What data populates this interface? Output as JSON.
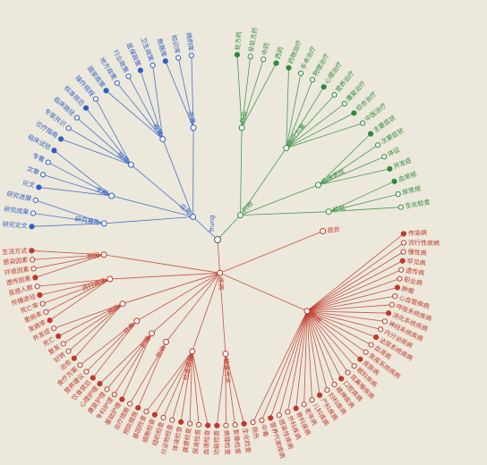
{
  "root": {
    "label": "Trung"
  },
  "colors": {
    "blue": "#2f5fc4",
    "green": "#2e8b3e",
    "red": "#c0392b",
    "background": "#ece8dc"
  },
  "groups": [
    {
      "label": "应用",
      "color": "blue",
      "children": [
        {
          "label": "研究报告",
          "children": [
            "研究论文",
            "研究成果",
            "研究进展"
          ]
        },
        {
          "label": "文献",
          "children": [
            "论文",
            "文章",
            "专著",
            "临床试验"
          ]
        },
        {
          "label": "指南",
          "children": [
            "诊疗指南",
            "专家共识",
            "临床路径",
            "标准规范",
            "操作规程"
          ]
        },
        {
          "label": "政策",
          "children": [
            "国家政策",
            "地方政策",
            "行业政策",
            "医保政策",
            "卫生政策"
          ]
        },
        {
          "label": "资源",
          "children": [
            "数据库",
            "知识库",
            "病例库"
          ]
        }
      ]
    },
    {
      "label": "药物",
      "color": "green",
      "children": [
        {
          "label": "药品",
          "children": [
            "处方药",
            "非处方药",
            "中药",
            "西药"
          ]
        },
        {
          "label": "治疗方案",
          "children": [
            "药物治疗",
            "手术治疗",
            "物理治疗",
            "心理治疗",
            "营养治疗",
            "康复治疗",
            "综合治疗",
            "中医治疗"
          ]
        },
        {
          "label": "临床表现",
          "children": [
            "主要症状",
            "次要症状",
            "体征",
            "并发症"
          ]
        },
        {
          "label": "检验",
          "children": [
            "血常规",
            "尿常规",
            "生化检查"
          ]
        }
      ]
    },
    {
      "label": "疾病",
      "color": "red",
      "children": [
        {
          "label": "症状",
          "children": []
        },
        {
          "label": "疾病",
          "children": [
            "传染病",
            "流行性疾病",
            "慢性病",
            "罕见病",
            "遗传病",
            "职业病",
            "肿瘤",
            "心血管疾病",
            "呼吸系统疾病",
            "消化系统疾病",
            "神经系统疾病",
            "内分泌疾病",
            "泌尿系统疾病",
            "血液病",
            "免疫系统疾病",
            "皮肤病",
            "眼科疾病",
            "耳鼻喉疾病",
            "口腔疾病",
            "精神疾病",
            "妇科疾病",
            "产科疾病",
            "儿科疾病",
            "老年病",
            "骨科疾病",
            "外科疾病",
            "感染性疾病",
            "营养代谢疾病",
            "中毒",
            "损伤"
          ]
        },
        {
          "label": "检查方法",
          "children": [
            "生化检查",
            "影像检查",
            "病理检查",
            "功能检查"
          ]
        },
        {
          "label": "检查项目",
          "children": [
            "血液检查",
            "尿液检查",
            "粪便检查",
            "体液检查",
            "分泌物检查",
            "组织检查",
            "细胞检查",
            "基因检查"
          ]
        },
        {
          "label": "防治",
          "children": [
            "预防措施",
            "治疗措施"
          ]
        },
        {
          "label": "护理",
          "children": [
            "基础护理",
            "专科护理",
            "康复护理",
            "心理护理"
          ]
        },
        {
          "label": "饮食",
          "children": [
            "饮食禁忌",
            "营养建议",
            "食疗方案"
          ]
        },
        {
          "label": "预后",
          "children": [
            "治愈",
            "好转",
            "复发",
            "死亡",
            "并发症"
          ]
        },
        {
          "label": "流行病学",
          "children": [
            "发病率",
            "患病率",
            "死亡率",
            "传播途径",
            "易感人群"
          ]
        },
        {
          "label": "病因",
          "children": [
            "遗传因素",
            "环境因素",
            "感染因素",
            "生活方式"
          ]
        }
      ]
    }
  ]
}
